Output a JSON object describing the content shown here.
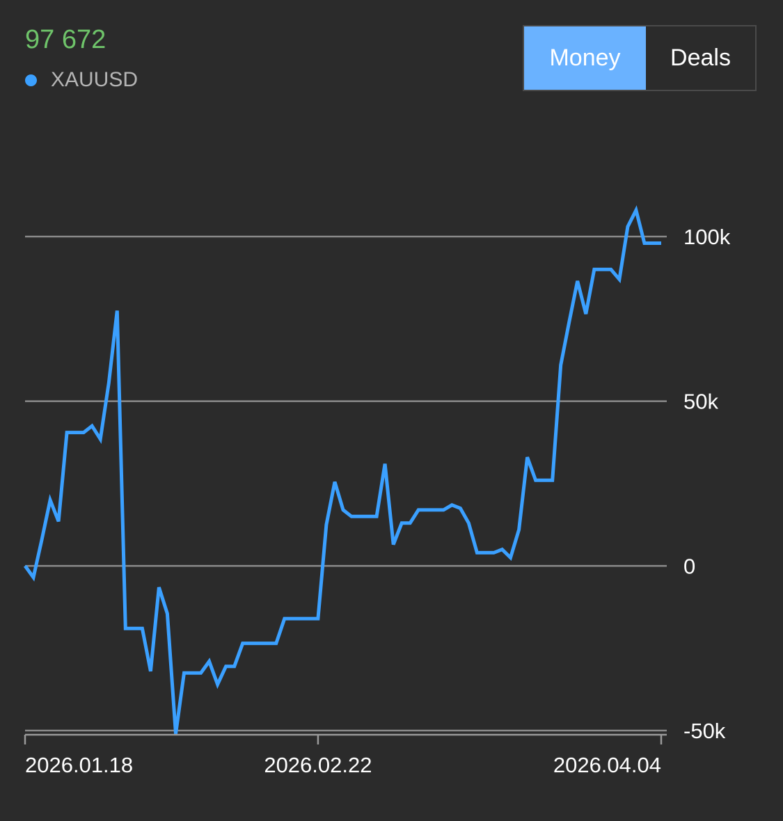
{
  "header": {
    "value": "97 672"
  },
  "toolbar": {
    "money_label": "Money",
    "deals_label": "Deals",
    "active": "Money"
  },
  "colors": {
    "background": "#2b2b2b",
    "series": "#3ba0ff",
    "value": "#6fc46a",
    "active_toggle": "#6ab2ff",
    "grid": "#8a8a8a"
  },
  "chart_data": {
    "type": "line",
    "ylim": [
      -50000,
      100000
    ],
    "yticks": [
      {
        "value": 100000,
        "label": "100k"
      },
      {
        "value": 50000,
        "label": "50k"
      },
      {
        "value": 0,
        "label": "0"
      },
      {
        "value": -50000,
        "label": "-50k"
      }
    ],
    "xticks": [
      {
        "x": 0,
        "label": "2026.01.18"
      },
      {
        "x": 35,
        "label": "2026.02.22"
      },
      {
        "x": 76,
        "label": "2026.04.04"
      }
    ],
    "grid": true,
    "legend": "top-left",
    "series": [
      {
        "name": "XAUUSD",
        "x": [
          0,
          1,
          2,
          3,
          4,
          5,
          6,
          7,
          8,
          9,
          10,
          11,
          12,
          13,
          14,
          15,
          16,
          17,
          18,
          19,
          20,
          21,
          22,
          23,
          24,
          25,
          26,
          27,
          28,
          29,
          30,
          31,
          32,
          33,
          34,
          35,
          36,
          37,
          38,
          39,
          40,
          41,
          42,
          43,
          44,
          45,
          46,
          47,
          48,
          49,
          50,
          51,
          52,
          53,
          54,
          55,
          56,
          57,
          58,
          59,
          60,
          61,
          62,
          63,
          64,
          65,
          66,
          67,
          68,
          69,
          70,
          71,
          72,
          73,
          74,
          75,
          76
        ],
        "values": [
          0,
          -3500,
          8000,
          20000,
          13500,
          40500,
          40500,
          40500,
          42500,
          38500,
          55500,
          77500,
          -19000,
          -19000,
          -19000,
          -32000,
          -6500,
          -14500,
          -51000,
          -32500,
          -32500,
          -32500,
          -29000,
          -36000,
          -30500,
          -30500,
          -23500,
          -23500,
          -23500,
          -23500,
          -23500,
          -16000,
          -16000,
          -16000,
          -16000,
          -16000,
          12500,
          25500,
          17000,
          15000,
          15000,
          15000,
          15000,
          31000,
          6500,
          13000,
          13000,
          17000,
          17000,
          17000,
          17000,
          18500,
          17500,
          13000,
          4000,
          4000,
          4000,
          5000,
          2500,
          11000,
          33000,
          26000,
          26000,
          26000,
          61000,
          74000,
          86500,
          76500,
          90000,
          90000,
          90000,
          87000,
          103000,
          108000,
          98000,
          98000,
          98000
        ]
      }
    ]
  }
}
